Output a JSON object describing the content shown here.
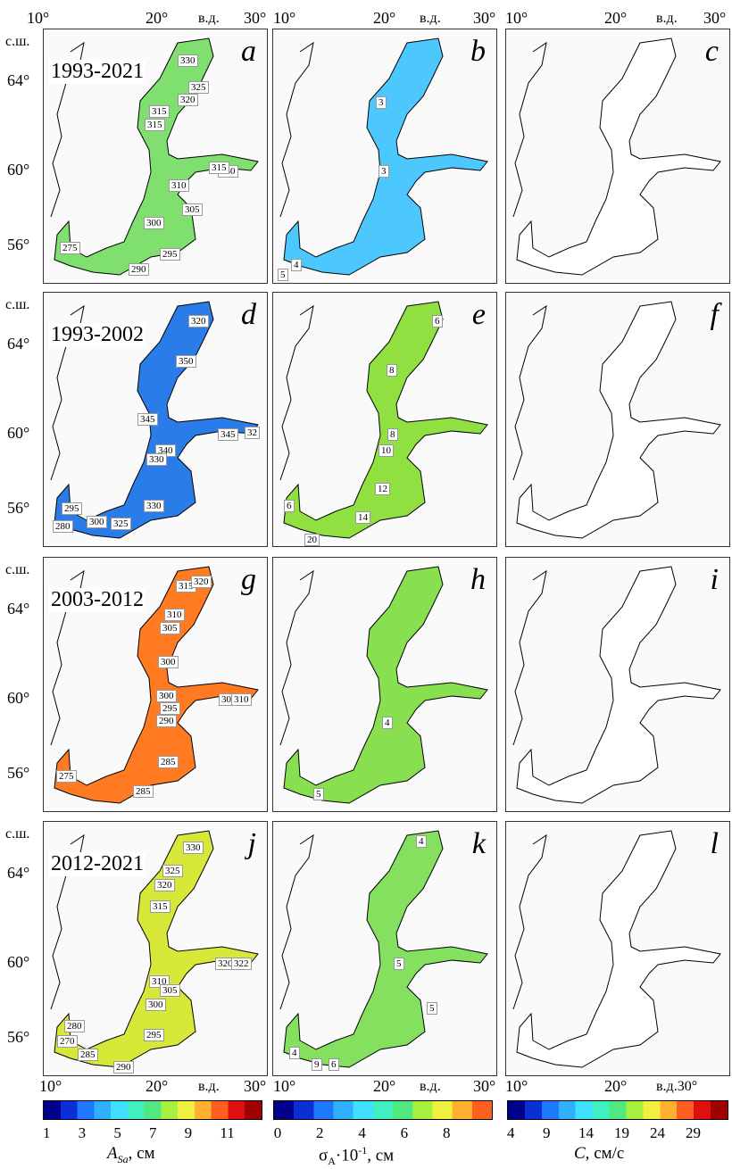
{
  "axes": {
    "top_lon": [
      "10°",
      "20°",
      "в.д.",
      "30°"
    ],
    "bottom_lon": [
      "10°",
      "20°",
      "в.д.",
      "30°"
    ],
    "bottom_lon_c": [
      "10°",
      "20°",
      "в.д.30°"
    ],
    "lat_header": "с.ш.",
    "lat": [
      "64°",
      "60°",
      "56°"
    ]
  },
  "rows": [
    {
      "period": "1993-2021",
      "letters": [
        "a",
        "b",
        "c"
      ]
    },
    {
      "period": "1993-2002",
      "letters": [
        "d",
        "e",
        "f"
      ]
    },
    {
      "period": "2003-2012",
      "letters": [
        "g",
        "h",
        "i"
      ]
    },
    {
      "period": "2012-2021",
      "letters": [
        "j",
        "k",
        "l"
      ]
    }
  ],
  "contours": {
    "a": [
      "330",
      "325",
      "320",
      "315",
      "315",
      "330",
      "315",
      "310",
      "305",
      "300",
      "295",
      "290",
      "275"
    ],
    "b": [
      "3",
      "3",
      "4",
      "5"
    ],
    "d": [
      "320",
      "350",
      "345",
      "340",
      "345",
      "330",
      "330",
      "325",
      "300",
      "295",
      "280",
      "32"
    ],
    "e": [
      "6",
      "8",
      "8",
      "10",
      "12",
      "14",
      "6",
      "20"
    ],
    "g": [
      "315",
      "320",
      "310",
      "305",
      "300",
      "300",
      "300",
      "310",
      "295",
      "290",
      "285",
      "285",
      "275"
    ],
    "h": [
      "4",
      "5"
    ],
    "j": [
      "330",
      "325",
      "320",
      "315",
      "310",
      "305",
      "300",
      "295",
      "290",
      "285",
      "280",
      "270",
      "320",
      "322"
    ],
    "k": [
      "4",
      "5",
      "5",
      "4",
      "9",
      "6"
    ]
  },
  "colorbars": [
    {
      "ticks": [
        "1",
        "3",
        "5",
        "7",
        "9",
        "11"
      ],
      "title": "A_Sa, см",
      "colors": [
        "#00008b",
        "#0a2fd6",
        "#1e78ff",
        "#2fb0ff",
        "#3fe0ff",
        "#40f0c0",
        "#50e880",
        "#a8f040",
        "#f0f040",
        "#ffb030",
        "#ff6020",
        "#e01010",
        "#a00000"
      ]
    },
    {
      "ticks": [
        "0",
        "2",
        "4",
        "6",
        "8"
      ],
      "title": "σA·10⁻¹, см",
      "colors": [
        "#00008b",
        "#0a2fd6",
        "#1e78ff",
        "#2fb0ff",
        "#3fe0ff",
        "#40f0c0",
        "#50e880",
        "#a8f040",
        "#f0f040",
        "#ffb030",
        "#ff6020"
      ]
    },
    {
      "ticks": [
        "4",
        "9",
        "14",
        "19",
        "24",
        "29"
      ],
      "title": "C, см/с",
      "colors": [
        "#00008b",
        "#0a2fd6",
        "#1e78ff",
        "#2fb0ff",
        "#3fe0ff",
        "#40f0c0",
        "#50e880",
        "#a8f040",
        "#f0f040",
        "#ffb030",
        "#ff6020",
        "#e01010",
        "#a00000"
      ]
    }
  ],
  "colorbar_titles": {
    "a_main": "A",
    "a_sub": "Sa",
    "a_unit": ", см",
    "s_main": "σ",
    "s_sub": "A",
    "s_rest": "·10",
    "s_sup": "-1",
    "s_unit": ", см",
    "c_main": "C,",
    "c_unit": " см/с"
  }
}
